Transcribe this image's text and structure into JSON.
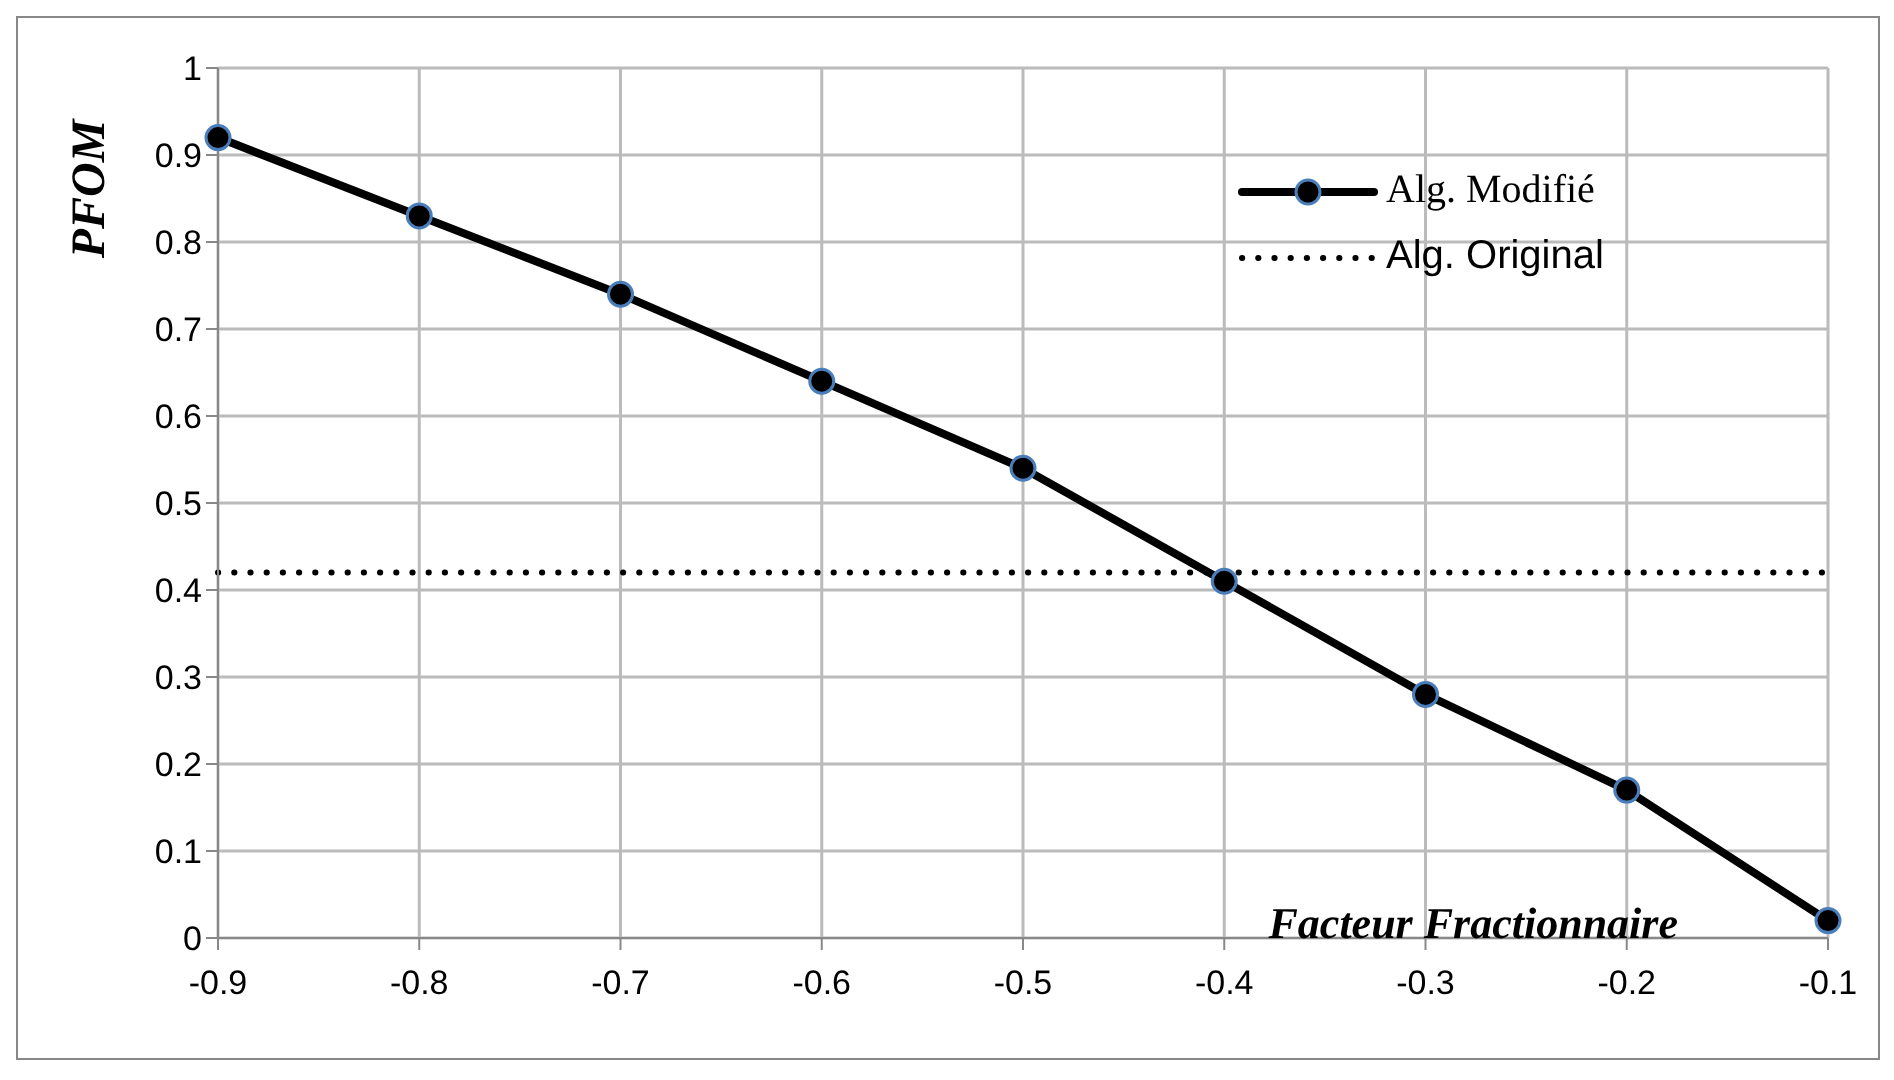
{
  "chart_data": {
    "type": "line",
    "xlabel": "Facteur Fractionnaire",
    "ylabel": "PFOM",
    "categories": [
      "-0.9",
      "-0.8",
      "-0.7",
      "-0.6",
      "-0.5",
      "-0.4",
      "-0.3",
      "-0.2",
      "-0.1"
    ],
    "series": [
      {
        "name": "Alg. Modifié",
        "color": "#000000",
        "marker": "circle",
        "line_style": "solid",
        "values": [
          0.92,
          0.83,
          0.74,
          0.64,
          0.54,
          0.41,
          0.28,
          0.17,
          0.02
        ]
      },
      {
        "name": "Alg. Original",
        "color": "#000000",
        "marker": "none",
        "line_style": "dotted",
        "values": [
          0.42,
          0.42,
          0.42,
          0.42,
          0.42,
          0.42,
          0.42,
          0.42,
          0.42
        ]
      }
    ],
    "ylim": [
      0,
      1
    ],
    "yticks": [
      0,
      0.1,
      0.2,
      0.3,
      0.4,
      0.5,
      0.6,
      0.7,
      0.8,
      0.9,
      1
    ],
    "grid": true,
    "legend": "top right"
  }
}
